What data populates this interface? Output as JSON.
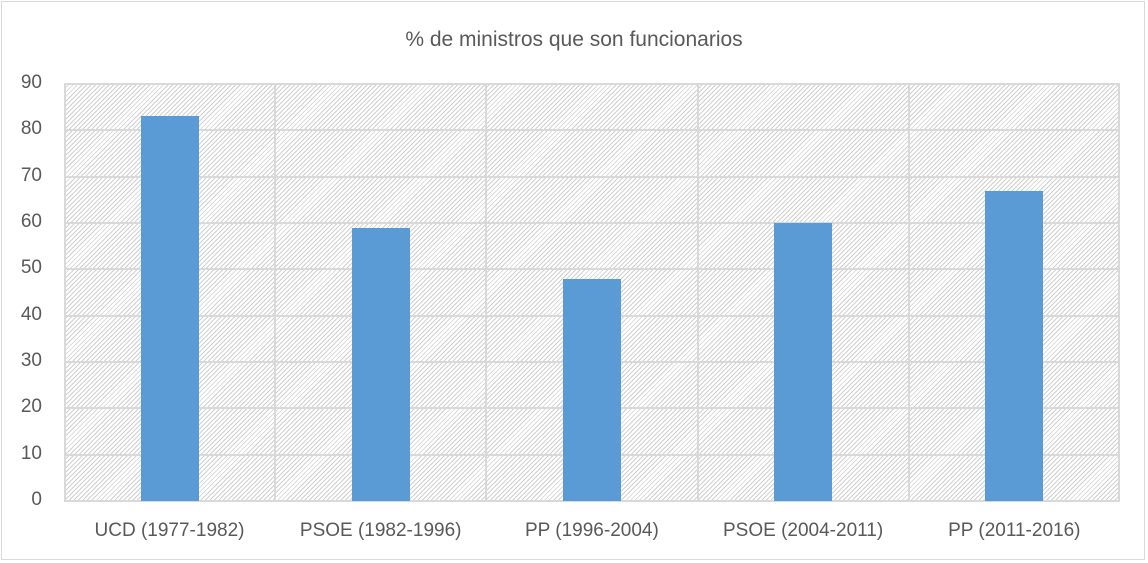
{
  "chart_data": {
    "type": "bar",
    "title": "% de ministros que son funcionarios",
    "categories": [
      "UCD (1977-1982)",
      "PSOE (1982-1996)",
      "PP (1996-2004)",
      "PSOE (2004-2011)",
      "PP (2011-2016)"
    ],
    "values": [
      83,
      59,
      48,
      60,
      67
    ],
    "xlabel": "",
    "ylabel": "",
    "ylim": [
      0,
      90
    ],
    "yticks": [
      "0",
      "10",
      "20",
      "30",
      "40",
      "50",
      "60",
      "70",
      "80",
      "90"
    ],
    "grid": true,
    "legend": null,
    "bar_color": "#5b9bd5"
  }
}
